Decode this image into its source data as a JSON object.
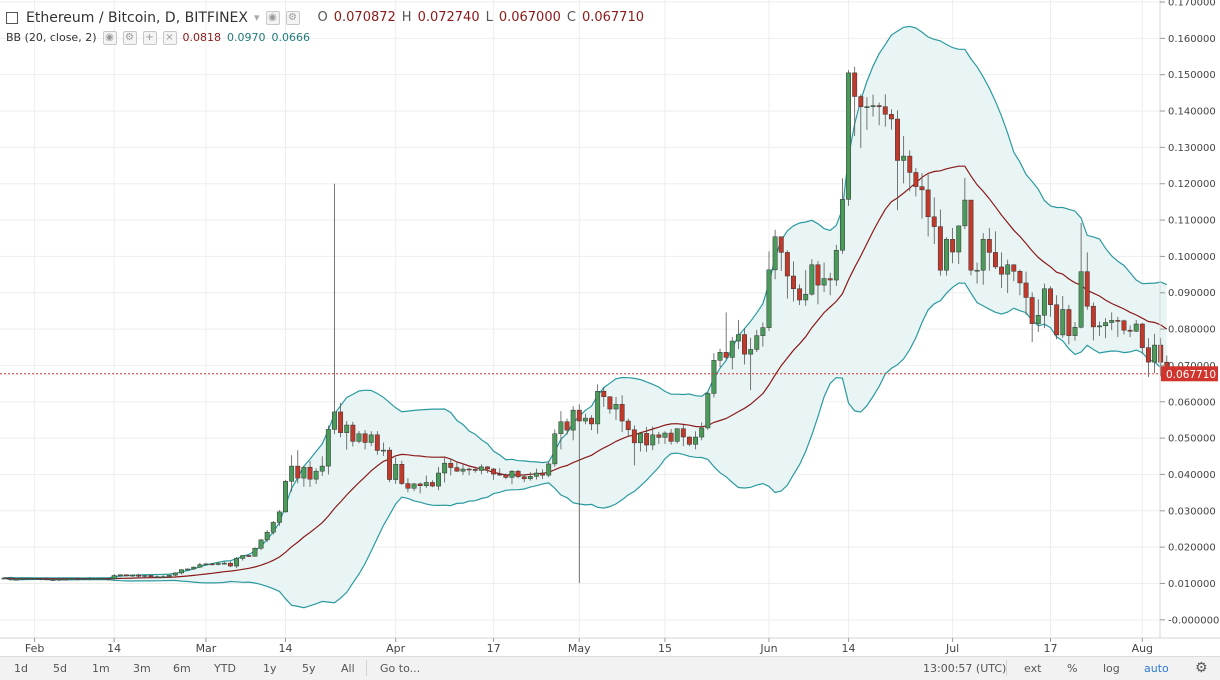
{
  "header": {
    "symbol": "Ethereum / Bitcoin, D, BITFINEX",
    "ohlc": [
      {
        "label": "O",
        "value": "0.070872"
      },
      {
        "label": "H",
        "value": "0.072740"
      },
      {
        "label": "L",
        "value": "0.067000"
      },
      {
        "label": "C",
        "value": "0.067710"
      }
    ],
    "indicator": "BB (20, close, 2)",
    "bb_values": [
      "0.0818",
      "0.0970",
      "0.0666"
    ]
  },
  "price_label": "0.067710",
  "bottom_bar": {
    "ranges": [
      "1d",
      "5d",
      "1m",
      "3m",
      "6m",
      "YTD",
      "1y",
      "5y",
      "All"
    ],
    "goto": "Go to...",
    "time": "13:00:57 (UTC)",
    "right": [
      "ext",
      "%",
      "log",
      "auto"
    ]
  },
  "colors": {
    "up": "#4a9a5a",
    "down": "#c0392b",
    "band": "#2b9aa0",
    "basis": "#8b1a1a",
    "band_fill": "#e8f5f4",
    "price_line": "#d0342c"
  },
  "chart_data": {
    "type": "candlestick",
    "ylim": [
      -0.005,
      0.17
    ],
    "yticks": [
      "0.170000",
      "0.160000",
      "0.150000",
      "0.140000",
      "0.130000",
      "0.120000",
      "0.110000",
      "0.100000",
      "0.090000",
      "0.080000",
      "0.070000",
      "0.060000",
      "0.050000",
      "0.040000",
      "0.030000",
      "0.020000",
      "0.010000",
      "-0.000000"
    ],
    "yvalues": [
      0.17,
      0.16,
      0.15,
      0.14,
      0.13,
      0.12,
      0.11,
      0.1,
      0.09,
      0.08,
      0.07,
      0.06,
      0.05,
      0.04,
      0.03,
      0.02,
      0.01,
      0.0
    ],
    "xticks": [
      {
        "label": "Feb",
        "day": 5
      },
      {
        "label": "14",
        "day": 18
      },
      {
        "label": "Mar",
        "day": 33
      },
      {
        "label": "14",
        "day": 46
      },
      {
        "label": "Apr",
        "day": 64
      },
      {
        "label": "17",
        "day": 80
      },
      {
        "label": "May",
        "day": 94
      },
      {
        "label": "15",
        "day": 108
      },
      {
        "label": "Jun",
        "day": 125
      },
      {
        "label": "14",
        "day": 138
      },
      {
        "label": "Jul",
        "day": 155
      },
      {
        "label": "17",
        "day": 171
      },
      {
        "label": "Aug",
        "day": 186
      }
    ],
    "first_day": "Jan 28",
    "candles": [
      [
        0.0115,
        0.0115,
        0.0113,
        0.0118
      ],
      [
        0.0115,
        0.0112,
        0.0108,
        0.0118
      ],
      [
        0.0112,
        0.0112,
        0.0109,
        0.0115
      ],
      [
        0.0112,
        0.0114,
        0.0109,
        0.0117
      ],
      [
        0.0114,
        0.0114,
        0.0111,
        0.0116
      ],
      [
        0.0114,
        0.0114,
        0.0112,
        0.0115
      ],
      [
        0.0114,
        0.0113,
        0.0109,
        0.0115
      ],
      [
        0.0113,
        0.0111,
        0.0109,
        0.0116
      ],
      [
        0.0111,
        0.0111,
        0.0107,
        0.0113
      ],
      [
        0.0111,
        0.0112,
        0.0107,
        0.0114
      ],
      [
        0.0112,
        0.0112,
        0.0109,
        0.0115
      ],
      [
        0.0112,
        0.0114,
        0.011,
        0.0116
      ],
      [
        0.0114,
        0.0112,
        0.0109,
        0.0116
      ],
      [
        0.0112,
        0.0113,
        0.0111,
        0.0114
      ],
      [
        0.0113,
        0.0114,
        0.0109,
        0.0118
      ],
      [
        0.0114,
        0.0114,
        0.0111,
        0.0115
      ],
      [
        0.0114,
        0.0114,
        0.0111,
        0.0117
      ],
      [
        0.0114,
        0.0113,
        0.0108,
        0.0115
      ],
      [
        0.0113,
        0.0122,
        0.0108,
        0.0126
      ],
      [
        0.0122,
        0.0124,
        0.0119,
        0.0125
      ],
      [
        0.0124,
        0.0121,
        0.0119,
        0.0125
      ],
      [
        0.0121,
        0.0123,
        0.0119,
        0.0125
      ],
      [
        0.0123,
        0.012,
        0.0117,
        0.0127
      ],
      [
        0.012,
        0.0122,
        0.0117,
        0.0123
      ],
      [
        0.0122,
        0.0118,
        0.0115,
        0.0124
      ],
      [
        0.0118,
        0.0119,
        0.0117,
        0.0122
      ],
      [
        0.0119,
        0.0119,
        0.0115,
        0.0123
      ],
      [
        0.0119,
        0.0123,
        0.0118,
        0.0124
      ],
      [
        0.0123,
        0.0129,
        0.012,
        0.0131
      ],
      [
        0.0129,
        0.0138,
        0.0125,
        0.0139
      ],
      [
        0.0138,
        0.014,
        0.0136,
        0.0141
      ],
      [
        0.014,
        0.0145,
        0.0137,
        0.0147
      ],
      [
        0.0145,
        0.0152,
        0.0143,
        0.0157
      ],
      [
        0.0152,
        0.0154,
        0.0149,
        0.0156
      ],
      [
        0.0154,
        0.0153,
        0.015,
        0.0155
      ],
      [
        0.0153,
        0.0155,
        0.015,
        0.016
      ],
      [
        0.0155,
        0.0156,
        0.0152,
        0.016
      ],
      [
        0.0156,
        0.0148,
        0.0145,
        0.016
      ],
      [
        0.0148,
        0.0169,
        0.0142,
        0.0173
      ],
      [
        0.0169,
        0.0177,
        0.0163,
        0.0178
      ],
      [
        0.0177,
        0.0175,
        0.0173,
        0.0178
      ],
      [
        0.0175,
        0.0197,
        0.0174,
        0.0199
      ],
      [
        0.0197,
        0.022,
        0.0192,
        0.0222
      ],
      [
        0.022,
        0.0241,
        0.0214,
        0.0247
      ],
      [
        0.0241,
        0.0268,
        0.0234,
        0.0272
      ],
      [
        0.0268,
        0.0297,
        0.0259,
        0.0302
      ],
      [
        0.0297,
        0.0381,
        0.0295,
        0.0385
      ],
      [
        0.0381,
        0.0423,
        0.0353,
        0.0453
      ],
      [
        0.0423,
        0.039,
        0.0376,
        0.0467
      ],
      [
        0.039,
        0.042,
        0.0366,
        0.0423
      ],
      [
        0.042,
        0.0387,
        0.0366,
        0.0437
      ],
      [
        0.0387,
        0.0409,
        0.0374,
        0.0417
      ],
      [
        0.0409,
        0.0423,
        0.0396,
        0.045
      ],
      [
        0.0423,
        0.0524,
        0.04,
        0.0535
      ],
      [
        0.0524,
        0.0572,
        0.0511,
        0.12
      ],
      [
        0.0572,
        0.0515,
        0.0502,
        0.0597
      ],
      [
        0.0515,
        0.0536,
        0.0468,
        0.0547
      ],
      [
        0.0536,
        0.0491,
        0.0477,
        0.0545
      ],
      [
        0.0491,
        0.0512,
        0.0486,
        0.052
      ],
      [
        0.0512,
        0.0488,
        0.0469,
        0.0522
      ],
      [
        0.0488,
        0.0509,
        0.0478,
        0.0519
      ],
      [
        0.0509,
        0.0466,
        0.0454,
        0.0519
      ],
      [
        0.0466,
        0.0467,
        0.0451,
        0.0488
      ],
      [
        0.0467,
        0.0386,
        0.0379,
        0.0475
      ],
      [
        0.0386,
        0.0428,
        0.0374,
        0.0447
      ],
      [
        0.0428,
        0.0375,
        0.0371,
        0.0438
      ],
      [
        0.0375,
        0.0362,
        0.0351,
        0.039
      ],
      [
        0.0362,
        0.0374,
        0.0354,
        0.0377
      ],
      [
        0.0374,
        0.0369,
        0.0348,
        0.0378
      ],
      [
        0.0369,
        0.0378,
        0.0363,
        0.0397
      ],
      [
        0.0378,
        0.0368,
        0.0365,
        0.0384
      ],
      [
        0.0368,
        0.0404,
        0.0357,
        0.0421
      ],
      [
        0.0404,
        0.0431,
        0.0378,
        0.0446
      ],
      [
        0.0431,
        0.0419,
        0.0397,
        0.0444
      ],
      [
        0.0419,
        0.0409,
        0.0407,
        0.0436
      ],
      [
        0.0409,
        0.0415,
        0.0398,
        0.0428
      ],
      [
        0.0415,
        0.0414,
        0.0398,
        0.0419
      ],
      [
        0.0414,
        0.0411,
        0.0405,
        0.0418
      ],
      [
        0.0411,
        0.0421,
        0.04,
        0.0428
      ],
      [
        0.0421,
        0.0415,
        0.0404,
        0.0423
      ],
      [
        0.0415,
        0.0401,
        0.0385,
        0.0418
      ],
      [
        0.0401,
        0.0399,
        0.0396,
        0.0417
      ],
      [
        0.0399,
        0.0392,
        0.0387,
        0.0403
      ],
      [
        0.0392,
        0.0409,
        0.0373,
        0.0412
      ],
      [
        0.0409,
        0.0394,
        0.0389,
        0.0413
      ],
      [
        0.0394,
        0.0388,
        0.0379,
        0.04
      ],
      [
        0.0388,
        0.0395,
        0.0383,
        0.0406
      ],
      [
        0.0395,
        0.0404,
        0.0386,
        0.0416
      ],
      [
        0.0404,
        0.0398,
        0.0388,
        0.0414
      ],
      [
        0.0398,
        0.0429,
        0.0392,
        0.0436
      ],
      [
        0.0429,
        0.0512,
        0.0421,
        0.0524
      ],
      [
        0.0512,
        0.0545,
        0.0469,
        0.0574
      ],
      [
        0.0545,
        0.0522,
        0.051,
        0.0554
      ],
      [
        0.0522,
        0.0577,
        0.0494,
        0.0588
      ],
      [
        0.0577,
        0.0547,
        0.0101,
        0.0593
      ],
      [
        0.0547,
        0.0555,
        0.0538,
        0.0567
      ],
      [
        0.0555,
        0.0539,
        0.0522,
        0.0563
      ],
      [
        0.0539,
        0.0629,
        0.0512,
        0.0648
      ],
      [
        0.0629,
        0.0614,
        0.0586,
        0.0641
      ],
      [
        0.0614,
        0.058,
        0.0567,
        0.0615
      ],
      [
        0.058,
        0.0593,
        0.055,
        0.0613
      ],
      [
        0.0593,
        0.0547,
        0.0517,
        0.0618
      ],
      [
        0.0547,
        0.0523,
        0.0504,
        0.0554
      ],
      [
        0.0523,
        0.0487,
        0.0425,
        0.0535
      ],
      [
        0.0487,
        0.0513,
        0.0463,
        0.0515
      ],
      [
        0.0513,
        0.0481,
        0.0462,
        0.0531
      ],
      [
        0.0481,
        0.0509,
        0.0467,
        0.0532
      ],
      [
        0.0509,
        0.0502,
        0.0484,
        0.0517
      ],
      [
        0.0502,
        0.0514,
        0.0484,
        0.0519
      ],
      [
        0.0514,
        0.0491,
        0.0482,
        0.0525
      ],
      [
        0.0491,
        0.0526,
        0.0485,
        0.0526
      ],
      [
        0.0526,
        0.0503,
        0.0478,
        0.0536
      ],
      [
        0.0503,
        0.0483,
        0.0478,
        0.0505
      ],
      [
        0.0483,
        0.0503,
        0.0469,
        0.0519
      ],
      [
        0.0503,
        0.0528,
        0.0494,
        0.0543
      ],
      [
        0.0528,
        0.0623,
        0.0523,
        0.0628
      ],
      [
        0.0623,
        0.0714,
        0.0612,
        0.0734
      ],
      [
        0.0714,
        0.0736,
        0.0695,
        0.0746
      ],
      [
        0.0736,
        0.0722,
        0.0716,
        0.0846
      ],
      [
        0.0722,
        0.0767,
        0.0689,
        0.0778
      ],
      [
        0.0767,
        0.0785,
        0.0745,
        0.0825
      ],
      [
        0.0785,
        0.0731,
        0.0703,
        0.0802
      ],
      [
        0.0731,
        0.0744,
        0.0632,
        0.0776
      ],
      [
        0.0744,
        0.0782,
        0.0737,
        0.0798
      ],
      [
        0.0782,
        0.0804,
        0.0752,
        0.0818
      ],
      [
        0.0804,
        0.0963,
        0.0795,
        0.1014
      ],
      [
        0.0963,
        0.1054,
        0.0937,
        0.1073
      ],
      [
        0.1054,
        0.1011,
        0.096,
        0.1051
      ],
      [
        0.1011,
        0.0946,
        0.0884,
        0.1017
      ],
      [
        0.0946,
        0.0911,
        0.0876,
        0.0986
      ],
      [
        0.0911,
        0.088,
        0.0866,
        0.0923
      ],
      [
        0.088,
        0.0896,
        0.0864,
        0.0962
      ],
      [
        0.0896,
        0.0977,
        0.0892,
        0.0992
      ],
      [
        0.0977,
        0.0921,
        0.0868,
        0.0987
      ],
      [
        0.0921,
        0.0939,
        0.0902,
        0.0983
      ],
      [
        0.0939,
        0.0935,
        0.0893,
        0.0955
      ],
      [
        0.0935,
        0.1017,
        0.0919,
        0.1032
      ],
      [
        0.1017,
        0.1157,
        0.1007,
        0.1215
      ],
      [
        0.1157,
        0.1505,
        0.1139,
        0.1513
      ],
      [
        0.1505,
        0.144,
        0.1331,
        0.1522
      ],
      [
        0.144,
        0.1412,
        0.1298,
        0.1446
      ],
      [
        0.1412,
        0.1412,
        0.1348,
        0.1438
      ],
      [
        0.1412,
        0.1415,
        0.1385,
        0.1445
      ],
      [
        0.1415,
        0.1412,
        0.1361,
        0.1423
      ],
      [
        0.1412,
        0.1391,
        0.1357,
        0.1446
      ],
      [
        0.1391,
        0.1378,
        0.1349,
        0.1405
      ],
      [
        0.1378,
        0.1264,
        0.1127,
        0.1402
      ],
      [
        0.1264,
        0.1276,
        0.1201,
        0.1331
      ],
      [
        0.1276,
        0.1231,
        0.1179,
        0.1292
      ],
      [
        0.1231,
        0.1192,
        0.1165,
        0.1243
      ],
      [
        0.1192,
        0.1183,
        0.1104,
        0.1229
      ],
      [
        0.1183,
        0.1109,
        0.1055,
        0.1226
      ],
      [
        0.1109,
        0.1082,
        0.1034,
        0.1162
      ],
      [
        0.1082,
        0.0962,
        0.0947,
        0.1129
      ],
      [
        0.0962,
        0.1047,
        0.0947,
        0.1053
      ],
      [
        0.1047,
        0.1012,
        0.0981,
        0.1078
      ],
      [
        0.1012,
        0.1084,
        0.0979,
        0.1084
      ],
      [
        0.1084,
        0.1155,
        0.1075,
        0.1216
      ],
      [
        0.1155,
        0.0962,
        0.0948,
        0.1155
      ],
      [
        0.0962,
        0.0962,
        0.0925,
        0.0983
      ],
      [
        0.0962,
        0.1047,
        0.0922,
        0.1064
      ],
      [
        0.1047,
        0.1011,
        0.0961,
        0.1078
      ],
      [
        0.1011,
        0.0971,
        0.0965,
        0.1069
      ],
      [
        0.0971,
        0.0951,
        0.0913,
        0.1011
      ],
      [
        0.0951,
        0.0977,
        0.0899,
        0.0991
      ],
      [
        0.0977,
        0.0959,
        0.0932,
        0.0978
      ],
      [
        0.0959,
        0.0927,
        0.0893,
        0.0964
      ],
      [
        0.0927,
        0.0887,
        0.0839,
        0.0958
      ],
      [
        0.0887,
        0.0815,
        0.0764,
        0.0901
      ],
      [
        0.0815,
        0.0838,
        0.0792,
        0.0882
      ],
      [
        0.0838,
        0.0911,
        0.0803,
        0.0925
      ],
      [
        0.0911,
        0.0867,
        0.0834,
        0.0918
      ],
      [
        0.0867,
        0.0784,
        0.0772,
        0.0893
      ],
      [
        0.0784,
        0.0854,
        0.0776,
        0.0891
      ],
      [
        0.0854,
        0.0782,
        0.0758,
        0.0867
      ],
      [
        0.0782,
        0.0805,
        0.0768,
        0.0819
      ],
      [
        0.0805,
        0.0958,
        0.0802,
        0.1092
      ],
      [
        0.0958,
        0.0863,
        0.0853,
        0.1011
      ],
      [
        0.0863,
        0.0806,
        0.0769,
        0.0873
      ],
      [
        0.0806,
        0.0809,
        0.0781,
        0.0821
      ],
      [
        0.0809,
        0.0818,
        0.0775,
        0.083
      ],
      [
        0.0818,
        0.0824,
        0.0797,
        0.0846
      ],
      [
        0.0824,
        0.0823,
        0.0778,
        0.0834
      ],
      [
        0.0823,
        0.0797,
        0.0785,
        0.0826
      ],
      [
        0.0797,
        0.0794,
        0.0778,
        0.081
      ],
      [
        0.0794,
        0.0814,
        0.0792,
        0.0825
      ],
      [
        0.0814,
        0.0749,
        0.0732,
        0.0817
      ],
      [
        0.0749,
        0.0709,
        0.0668,
        0.0775
      ],
      [
        0.0709,
        0.0756,
        0.0679,
        0.0787
      ],
      [
        0.0756,
        0.0709,
        0.067,
        0.0775
      ],
      [
        0.0709,
        0.0677,
        0.067,
        0.0727
      ]
    ]
  }
}
